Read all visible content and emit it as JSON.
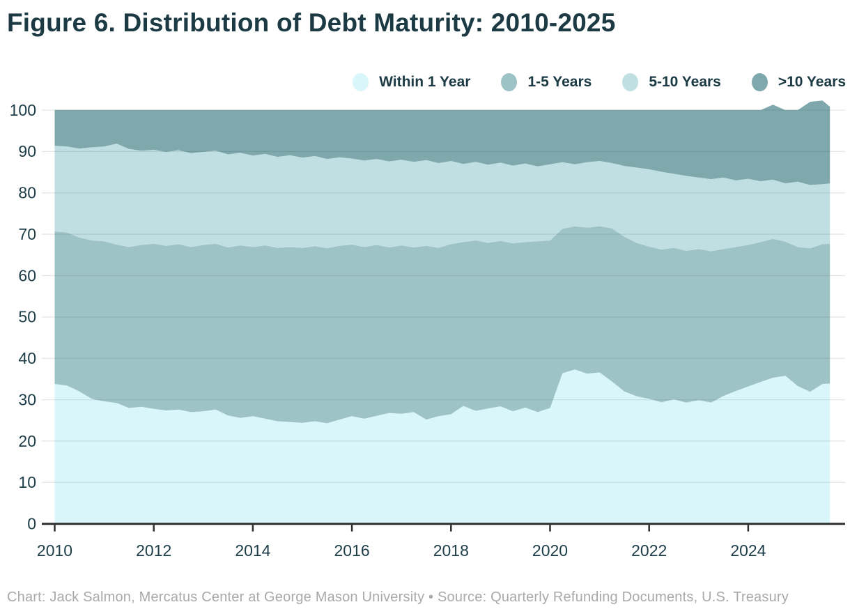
{
  "title": "Figure 6. Distribution of Debt Maturity: 2010-2025",
  "footer": "Chart: Jack Salmon, Mercatus Center at George Mason University • Source: Quarterly Refunding Documents, U.S. Treasury",
  "colors": {
    "title_text": "#1b3a44",
    "axis_label_text": "#1c3d47",
    "axis_line": "#2e2e2e",
    "grid_line": "#e2e6e6",
    "grid_overlay": "rgba(40,70,75,0.13)",
    "footer_text": "#a9a9a9",
    "background": "#ffffff"
  },
  "legend": [
    {
      "label": "Within 1 Year",
      "color": "#d9f7fa"
    },
    {
      "label": "1-5 Years",
      "color": "#9ec3c6"
    },
    {
      "label": "5-10 Years",
      "color": "#bfdfe2"
    },
    {
      "label": ">10 Years",
      "color": "#7ea8ac"
    }
  ],
  "chart_data": {
    "type": "area",
    "stacked": true,
    "normalized": "percent of total, stacks to ~100",
    "title": "Figure 6. Distribution of Debt Maturity: 2010-2025",
    "xlabel": "",
    "ylabel": "",
    "legend_position": "top-right",
    "grid": "horizontal",
    "ylim": [
      0,
      100
    ],
    "xlim": [
      2009.74,
      2025.96
    ],
    "y_ticks": [
      0,
      10,
      20,
      30,
      40,
      50,
      60,
      70,
      80,
      90,
      100
    ],
    "x_ticks": [
      2010,
      2012,
      2014,
      2016,
      2018,
      2020,
      2022,
      2024
    ],
    "x": [
      2010.0,
      2010.25,
      2010.5,
      2010.75,
      2011.0,
      2011.25,
      2011.5,
      2011.75,
      2012.0,
      2012.25,
      2012.5,
      2012.75,
      2013.0,
      2013.25,
      2013.5,
      2013.75,
      2014.0,
      2014.25,
      2014.5,
      2014.75,
      2015.0,
      2015.25,
      2015.5,
      2015.75,
      2016.0,
      2016.25,
      2016.5,
      2016.75,
      2017.0,
      2017.25,
      2017.5,
      2017.75,
      2018.0,
      2018.25,
      2018.5,
      2018.75,
      2019.0,
      2019.25,
      2019.5,
      2019.75,
      2020.0,
      2020.25,
      2020.5,
      2020.75,
      2021.0,
      2021.25,
      2021.5,
      2021.75,
      2022.0,
      2022.25,
      2022.5,
      2022.75,
      2023.0,
      2023.25,
      2023.5,
      2023.75,
      2024.0,
      2024.25,
      2024.5,
      2024.75,
      2025.0,
      2025.25,
      2025.5,
      2025.65
    ],
    "series": [
      {
        "name": "Within 1 Year",
        "color": "#d9f7fa",
        "values": [
          33.8,
          33.4,
          32.0,
          30.2,
          29.6,
          29.2,
          28.0,
          28.3,
          27.8,
          27.4,
          27.6,
          27.0,
          27.2,
          27.6,
          26.2,
          25.6,
          26.0,
          25.4,
          24.8,
          24.6,
          24.4,
          24.8,
          24.3,
          25.2,
          26.0,
          25.4,
          26.1,
          26.8,
          26.6,
          27.0,
          25.2,
          26.0,
          26.5,
          28.5,
          27.3,
          27.9,
          28.4,
          27.2,
          28.1,
          27.0,
          28.0,
          36.4,
          37.3,
          36.3,
          36.6,
          34.4,
          32.0,
          30.8,
          30.2,
          29.4,
          30.1,
          29.3,
          29.9,
          29.3,
          30.9,
          32.1,
          33.2,
          34.3,
          35.3,
          35.8,
          33.3,
          31.9,
          33.8,
          33.9
        ]
      },
      {
        "name": "1-5 Years",
        "color": "#9ec3c6",
        "values": [
          36.9,
          37.0,
          37.2,
          38.3,
          38.7,
          38.3,
          38.9,
          39.1,
          39.9,
          39.8,
          40.0,
          39.9,
          40.2,
          40.1,
          40.6,
          41.7,
          40.9,
          41.9,
          41.9,
          42.3,
          42.3,
          42.3,
          42.3,
          42.0,
          41.5,
          41.5,
          41.3,
          40.0,
          40.7,
          39.8,
          42.0,
          40.7,
          41.1,
          39.6,
          41.2,
          40.0,
          40.0,
          40.6,
          40.0,
          41.3,
          40.5,
          34.9,
          34.6,
          35.3,
          35.3,
          37.0,
          37.4,
          37.1,
          36.8,
          36.9,
          36.6,
          36.7,
          36.5,
          36.6,
          35.5,
          34.8,
          34.2,
          33.8,
          33.6,
          32.4,
          33.6,
          34.7,
          33.8,
          33.8
        ]
      },
      {
        "name": "5-10 Years",
        "color": "#bfdfe2",
        "values": [
          20.7,
          20.8,
          21.5,
          22.5,
          22.9,
          24.4,
          23.7,
          22.8,
          22.7,
          22.7,
          22.7,
          22.7,
          22.5,
          22.5,
          22.5,
          22.4,
          22.1,
          22.1,
          22.0,
          22.2,
          21.8,
          21.8,
          21.6,
          21.4,
          20.8,
          20.9,
          20.8,
          20.8,
          20.7,
          20.7,
          20.7,
          20.5,
          20.1,
          18.9,
          19.0,
          18.9,
          18.9,
          18.8,
          19.0,
          18.1,
          18.4,
          16.1,
          15.0,
          15.8,
          15.8,
          15.8,
          17.1,
          18.2,
          18.7,
          18.8,
          17.9,
          18.1,
          17.3,
          17.4,
          17.3,
          16.1,
          16.0,
          14.7,
          14.3,
          14.1,
          15.8,
          15.3,
          14.5,
          14.6
        ]
      },
      {
        "name": ">10 Years",
        "color": "#7ea8ac",
        "values": [
          8.6,
          8.8,
          9.3,
          9.0,
          8.8,
          8.1,
          9.4,
          9.8,
          9.6,
          10.1,
          9.7,
          10.4,
          10.1,
          9.8,
          10.7,
          10.3,
          11.0,
          10.6,
          11.3,
          10.9,
          11.5,
          11.1,
          11.8,
          11.4,
          11.7,
          12.2,
          11.8,
          12.4,
          12.0,
          12.5,
          12.1,
          12.8,
          12.3,
          13.0,
          12.5,
          13.2,
          12.7,
          13.4,
          12.9,
          13.6,
          13.1,
          12.6,
          13.1,
          12.6,
          12.3,
          12.8,
          13.5,
          13.9,
          14.3,
          14.9,
          15.4,
          15.9,
          16.3,
          16.7,
          16.3,
          17.0,
          16.6,
          17.2,
          18.1,
          17.7,
          17.3,
          20.1,
          20.2,
          18.5
        ]
      }
    ]
  }
}
